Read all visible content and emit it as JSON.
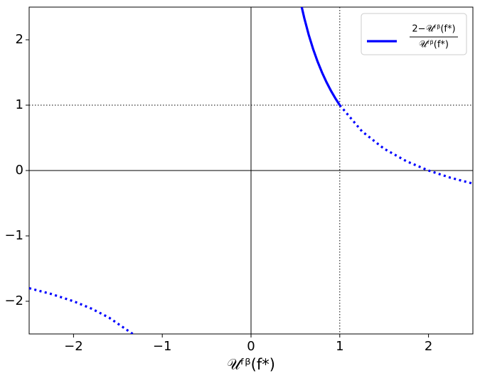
{
  "chart_data": {
    "type": "line",
    "xlabel": "𝒰ᶠᵝ(f*)",
    "legend": {
      "numerator": "2−𝒰ᶠᵝ(f*)",
      "denominator": "𝒰ᶠᵝ(f*)",
      "corner": "upper right"
    },
    "series": [
      {
        "color": "#0000ff",
        "style": "solid",
        "x": [
          0.5714,
          0.6,
          0.65,
          0.7,
          0.75,
          0.8,
          0.85,
          0.9,
          0.95,
          1
        ],
        "values": [
          2.5,
          2.333,
          2.077,
          1.857,
          1.667,
          1.5,
          1.353,
          1.222,
          1.105,
          1
        ]
      },
      {
        "color": "#0000ff",
        "style": "dotted",
        "x": [
          1,
          1.25,
          1.5,
          1.75,
          2,
          2.25,
          2.5,
          null,
          -2.5,
          -2.25,
          -2,
          -1.8,
          -1.6,
          -1.333
        ],
        "values": [
          1,
          0.6,
          0.333,
          0.143,
          0,
          -0.111,
          -0.2,
          null,
          -1.8,
          -1.889,
          -2,
          -2.111,
          -2.25,
          -2.5
        ]
      }
    ],
    "axhlines": [
      {
        "value": 0,
        "style": "solid"
      },
      {
        "value": 1,
        "style": "dotted"
      }
    ],
    "axvlines": [
      {
        "value": 0,
        "style": "solid"
      },
      {
        "value": 1,
        "style": "dotted"
      }
    ],
    "xlim": [
      -2.5,
      2.5
    ],
    "ylim": [
      -2.5,
      2.5
    ],
    "xticks": [
      {
        "value": -2,
        "label": "−2"
      },
      {
        "value": -1,
        "label": "−1"
      },
      0,
      1,
      2
    ],
    "yticks": [
      {
        "value": -2,
        "label": "−2"
      },
      {
        "value": -1,
        "label": "−1"
      },
      0,
      1,
      2
    ]
  }
}
